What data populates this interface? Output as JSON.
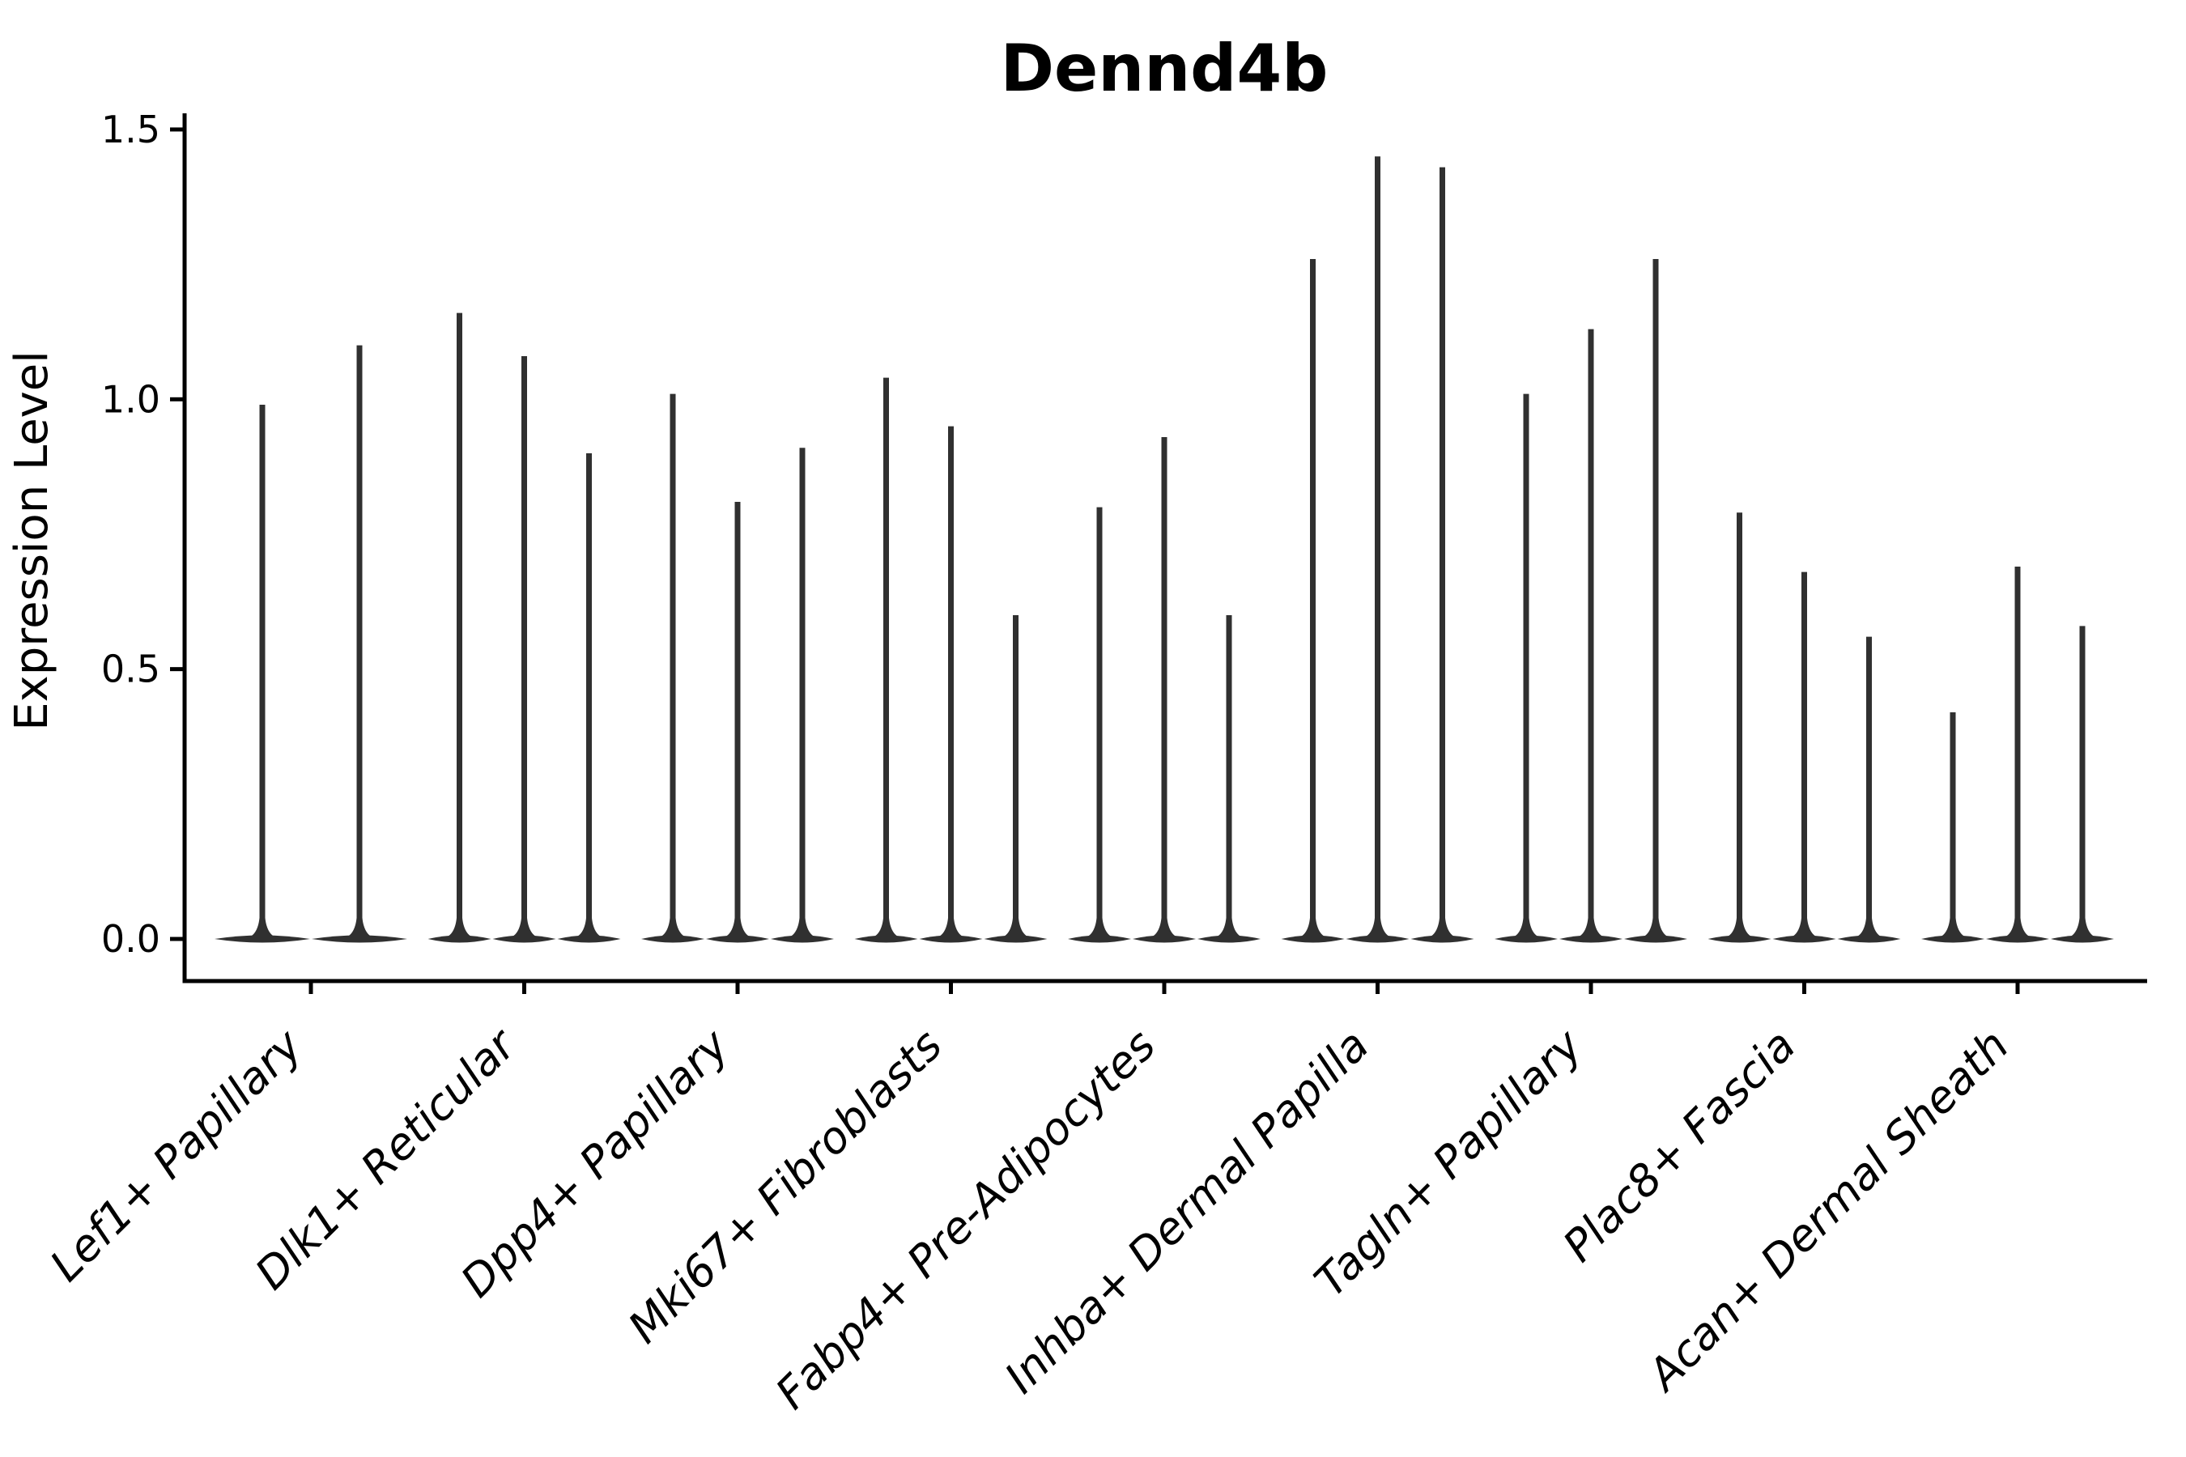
{
  "figure": {
    "background": "#ffffff"
  },
  "chart_data": {
    "type": "violin",
    "title": "Dennd4b",
    "title_bold": true,
    "ylabel": "Expression Level",
    "xlabel": "",
    "ylim": [
      -0.08,
      1.54
    ],
    "yticks": [
      0.0,
      0.5,
      1.0,
      1.5
    ],
    "ytick_labels": [
      "0.0",
      "0.5",
      "1.0",
      "1.5"
    ],
    "grid": false,
    "legend": "none",
    "x_tick_label_rotation_deg": 45,
    "x_tick_label_style": "italic",
    "categories": [
      "Lef1+ Papillary",
      "Dlk1+ Reticular",
      "Dpp4+ Papillary",
      "Mki67+ Fibroblasts",
      "Fabp4+ Pre-Adipocytes",
      "Inhba+ Dermal Papilla",
      "Tagln+ Papillary",
      "Plac8+ Fascia",
      "Acan+ Dermal Sheath"
    ],
    "groups": [
      {
        "category": "Lef1+ Papillary",
        "violin_maxima": [
          0.99,
          1.1
        ]
      },
      {
        "category": "Dlk1+ Reticular",
        "violin_maxima": [
          1.16,
          1.08,
          0.9
        ]
      },
      {
        "category": "Dpp4+ Papillary",
        "violin_maxima": [
          1.01,
          0.81,
          0.91
        ]
      },
      {
        "category": "Mki67+ Fibroblasts",
        "violin_maxima": [
          1.04,
          0.95,
          0.6
        ]
      },
      {
        "category": "Fabp4+ Pre-Adipocytes",
        "violin_maxima": [
          0.8,
          0.93,
          0.6
        ]
      },
      {
        "category": "Inhba+ Dermal Papilla",
        "violin_maxima": [
          1.26,
          1.45,
          1.43
        ]
      },
      {
        "category": "Tagln+ Papillary",
        "violin_maxima": [
          1.01,
          1.13,
          1.26
        ]
      },
      {
        "category": "Plac8+ Fascia",
        "violin_maxima": [
          0.79,
          0.68,
          0.56
        ]
      },
      {
        "category": "Acan+ Dermal Sheath",
        "violin_maxima": [
          0.42,
          0.69,
          0.58
        ]
      }
    ],
    "colors": {
      "violin": "#303030",
      "axis": "#000000",
      "text": "#000000"
    }
  }
}
